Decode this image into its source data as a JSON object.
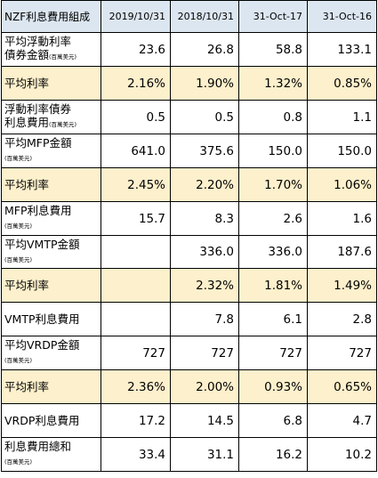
{
  "header": {
    "title": "NZF利息費用組成",
    "columns": [
      "2019/10/31",
      "2018/10/31",
      "31-Oct-17",
      "31-Oct-16"
    ]
  },
  "rows": [
    {
      "label_lines": [
        "平均浮動利率",
        "債券金額"
      ],
      "sub": "(百萬美元)",
      "values": [
        "23.6",
        "26.8",
        "58.8",
        "133.1"
      ]
    },
    {
      "label_lines": [
        "平均利率"
      ],
      "sub": "",
      "values": [
        "2.16%",
        "1.90%",
        "1.32%",
        "0.85%"
      ]
    },
    {
      "label_lines": [
        "浮動利率債券",
        "利息費用"
      ],
      "sub": "(百萬美元)",
      "values": [
        "0.5",
        "0.5",
        "0.8",
        "1.1"
      ]
    },
    {
      "label_lines": [
        "平均MFP金額"
      ],
      "sub": "(百萬美元)",
      "values": [
        "641.0",
        "375.6",
        "150.0",
        "150.0"
      ]
    },
    {
      "label_lines": [
        "平均利率"
      ],
      "sub": "",
      "values": [
        "2.45%",
        "2.20%",
        "1.70%",
        "1.06%"
      ]
    },
    {
      "label_lines": [
        "MFP利息費用"
      ],
      "sub": "(百萬美元)",
      "values": [
        "15.7",
        "8.3",
        "2.6",
        "1.6"
      ]
    },
    {
      "label_lines": [
        "平均VMTP金額"
      ],
      "sub": "(百萬美元)",
      "values": [
        "",
        "336.0",
        "336.0",
        "187.6"
      ]
    },
    {
      "label_lines": [
        "平均利率"
      ],
      "sub": "",
      "values": [
        "",
        "2.32%",
        "1.81%",
        "1.49%"
      ]
    },
    {
      "label_lines": [
        "VMTP利息費用"
      ],
      "sub": "",
      "values": [
        "",
        "7.8",
        "6.1",
        "2.8"
      ]
    },
    {
      "label_lines": [
        "平均VRDP金額"
      ],
      "sub": "(百萬美元)",
      "values": [
        "727",
        "727",
        "727",
        "727"
      ]
    },
    {
      "label_lines": [
        "平均利率"
      ],
      "sub": "",
      "values": [
        "2.36%",
        "2.00%",
        "0.93%",
        "0.65%"
      ]
    },
    {
      "label_lines": [
        "VRDP利息費用"
      ],
      "sub": "",
      "values": [
        "17.2",
        "14.5",
        "6.8",
        "4.7"
      ]
    },
    {
      "label_lines": [
        "利息費用總和"
      ],
      "sub": "(百萬美元)",
      "values": [
        "33.4",
        "31.1",
        "16.2",
        "10.2"
      ]
    }
  ]
}
